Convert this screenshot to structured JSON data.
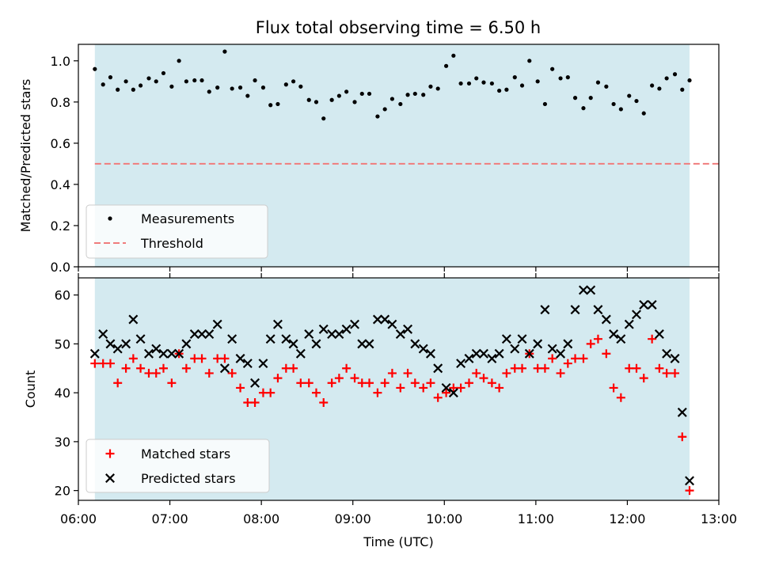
{
  "chart_data": [
    {
      "type": "scatter",
      "title": "Flux total observing time = 6.50 h",
      "xlabel": "",
      "ylabel": "Matched/Predicted stars",
      "xlim": [
        6.0,
        13.0
      ],
      "ylim": [
        0.0,
        1.08
      ],
      "yticks": [
        0.0,
        0.2,
        0.4,
        0.6,
        0.8,
        1.0
      ],
      "ytick_labels": [
        "0.0",
        "0.2",
        "0.4",
        "0.6",
        "0.8",
        "1.0"
      ],
      "span": [
        6.18,
        12.68
      ],
      "span_color": "#d4eaf0",
      "threshold": 0.5,
      "threshold_color": "#f07c7c",
      "marker_color": "#000000",
      "legend": [
        "Measurements",
        "Threshold"
      ],
      "series": [
        {
          "name": "Measurements",
          "x": [
            6.18,
            6.27,
            6.35,
            6.43,
            6.52,
            6.6,
            6.68,
            6.77,
            6.85,
            6.93,
            7.02,
            7.1,
            7.18,
            7.27,
            7.35,
            7.43,
            7.52,
            7.6,
            7.68,
            7.77,
            7.85,
            7.93,
            8.02,
            8.1,
            8.18,
            8.27,
            8.35,
            8.43,
            8.52,
            8.6,
            8.68,
            8.77,
            8.85,
            8.93,
            9.02,
            9.1,
            9.18,
            9.27,
            9.35,
            9.43,
            9.52,
            9.6,
            9.68,
            9.77,
            9.85,
            9.93,
            10.02,
            10.1,
            10.18,
            10.27,
            10.35,
            10.43,
            10.52,
            10.6,
            10.68,
            10.77,
            10.85,
            10.93,
            11.02,
            11.1,
            11.18,
            11.27,
            11.35,
            11.43,
            11.52,
            11.6,
            11.68,
            11.77,
            11.85,
            11.93,
            12.02,
            12.1,
            12.18,
            12.27,
            12.35,
            12.43,
            12.52,
            12.6,
            12.68
          ],
          "y": [
            0.96,
            0.885,
            0.92,
            0.86,
            0.9,
            0.86,
            0.88,
            0.915,
            0.9,
            0.94,
            0.875,
            1.0,
            0.9,
            0.905,
            0.905,
            0.85,
            0.87,
            1.045,
            0.865,
            0.87,
            0.83,
            0.905,
            0.87,
            0.785,
            0.79,
            0.885,
            0.9,
            0.875,
            0.81,
            0.8,
            0.72,
            0.81,
            0.83,
            0.85,
            0.8,
            0.84,
            0.84,
            0.73,
            0.765,
            0.815,
            0.79,
            0.835,
            0.84,
            0.835,
            0.875,
            0.865,
            0.975,
            1.025,
            0.89,
            0.89,
            0.915,
            0.895,
            0.89,
            0.855,
            0.86,
            0.92,
            0.88,
            1.0,
            0.9,
            0.79,
            0.96,
            0.915,
            0.92,
            0.82,
            0.77,
            0.82,
            0.895,
            0.875,
            0.79,
            0.765,
            0.83,
            0.805,
            0.745,
            0.88,
            0.865,
            0.915,
            0.935,
            0.86,
            0.905
          ]
        }
      ]
    },
    {
      "type": "scatter",
      "title": "",
      "xlabel": "Time (UTC)",
      "ylabel": "Count",
      "xlim": [
        6.0,
        13.0
      ],
      "ylim": [
        18,
        63.5
      ],
      "yticks": [
        20,
        30,
        40,
        50,
        60
      ],
      "ytick_labels": [
        "20",
        "30",
        "40",
        "50",
        "60"
      ],
      "xticks": [
        6,
        7,
        8,
        9,
        10,
        11,
        12,
        13
      ],
      "xtick_labels": [
        "06:00",
        "07:00",
        "08:00",
        "09:00",
        "10:00",
        "11:00",
        "12:00",
        "13:00"
      ],
      "span": [
        6.18,
        12.68
      ],
      "span_color": "#d4eaf0",
      "legend": [
        "Matched stars",
        "Predicted stars"
      ],
      "series": [
        {
          "name": "Matched stars",
          "marker": "+",
          "color": "#ff0000",
          "x": [
            6.18,
            6.27,
            6.35,
            6.43,
            6.52,
            6.6,
            6.68,
            6.77,
            6.85,
            6.93,
            7.02,
            7.1,
            7.18,
            7.27,
            7.35,
            7.43,
            7.52,
            7.6,
            7.68,
            7.77,
            7.85,
            7.93,
            8.02,
            8.1,
            8.18,
            8.27,
            8.35,
            8.43,
            8.52,
            8.6,
            8.68,
            8.77,
            8.85,
            8.93,
            9.02,
            9.1,
            9.18,
            9.27,
            9.35,
            9.43,
            9.52,
            9.6,
            9.68,
            9.77,
            9.85,
            9.93,
            10.02,
            10.1,
            10.18,
            10.27,
            10.35,
            10.43,
            10.52,
            10.6,
            10.68,
            10.77,
            10.85,
            10.93,
            11.02,
            11.1,
            11.18,
            11.27,
            11.35,
            11.43,
            11.52,
            11.6,
            11.68,
            11.77,
            11.85,
            11.93,
            12.02,
            12.1,
            12.18,
            12.27,
            12.35,
            12.43,
            12.52,
            12.6,
            12.68
          ],
          "y": [
            46,
            46,
            46,
            42,
            45,
            47,
            45,
            44,
            44,
            45,
            42,
            48,
            45,
            47,
            47,
            44,
            47,
            47,
            44,
            41,
            38,
            38,
            40,
            40,
            43,
            45,
            45,
            42,
            42,
            40,
            38,
            42,
            43,
            45,
            43,
            42,
            42,
            40,
            42,
            44,
            41,
            44,
            42,
            41,
            42,
            39,
            40,
            41,
            41,
            42,
            44,
            43,
            42,
            41,
            44,
            45,
            45,
            48,
            45,
            45,
            47,
            44,
            46,
            47,
            47,
            50,
            51,
            48,
            41,
            39,
            45,
            45,
            43,
            51,
            45,
            44,
            44,
            31,
            20
          ]
        },
        {
          "name": "Predicted stars",
          "marker": "x",
          "color": "#000000",
          "x": [
            6.18,
            6.27,
            6.35,
            6.43,
            6.52,
            6.6,
            6.68,
            6.77,
            6.85,
            6.93,
            7.02,
            7.1,
            7.18,
            7.27,
            7.35,
            7.43,
            7.52,
            7.6,
            7.68,
            7.77,
            7.85,
            7.93,
            8.02,
            8.1,
            8.18,
            8.27,
            8.35,
            8.43,
            8.52,
            8.6,
            8.68,
            8.77,
            8.85,
            8.93,
            9.02,
            9.1,
            9.18,
            9.27,
            9.35,
            9.43,
            9.52,
            9.6,
            9.68,
            9.77,
            9.85,
            9.93,
            10.02,
            10.1,
            10.18,
            10.27,
            10.35,
            10.43,
            10.52,
            10.6,
            10.68,
            10.77,
            10.85,
            10.93,
            11.02,
            11.1,
            11.18,
            11.27,
            11.35,
            11.43,
            11.52,
            11.6,
            11.68,
            11.77,
            11.85,
            11.93,
            12.02,
            12.1,
            12.18,
            12.27,
            12.35,
            12.43,
            12.52,
            12.6,
            12.68
          ],
          "y": [
            48,
            52,
            50,
            49,
            50,
            55,
            51,
            48,
            49,
            48,
            48,
            48,
            50,
            52,
            52,
            52,
            54,
            45,
            51,
            47,
            46,
            42,
            46,
            51,
            54,
            51,
            50,
            48,
            52,
            50,
            53,
            52,
            52,
            53,
            54,
            50,
            50,
            55,
            55,
            54,
            52,
            53,
            50,
            49,
            48,
            45,
            41,
            40,
            46,
            47,
            48,
            48,
            47,
            48,
            51,
            49,
            51,
            48,
            50,
            57,
            49,
            48,
            50,
            57,
            61,
            61,
            57,
            55,
            52,
            51,
            54,
            56,
            58,
            58,
            52,
            48,
            47,
            36,
            22
          ]
        }
      ]
    }
  ]
}
